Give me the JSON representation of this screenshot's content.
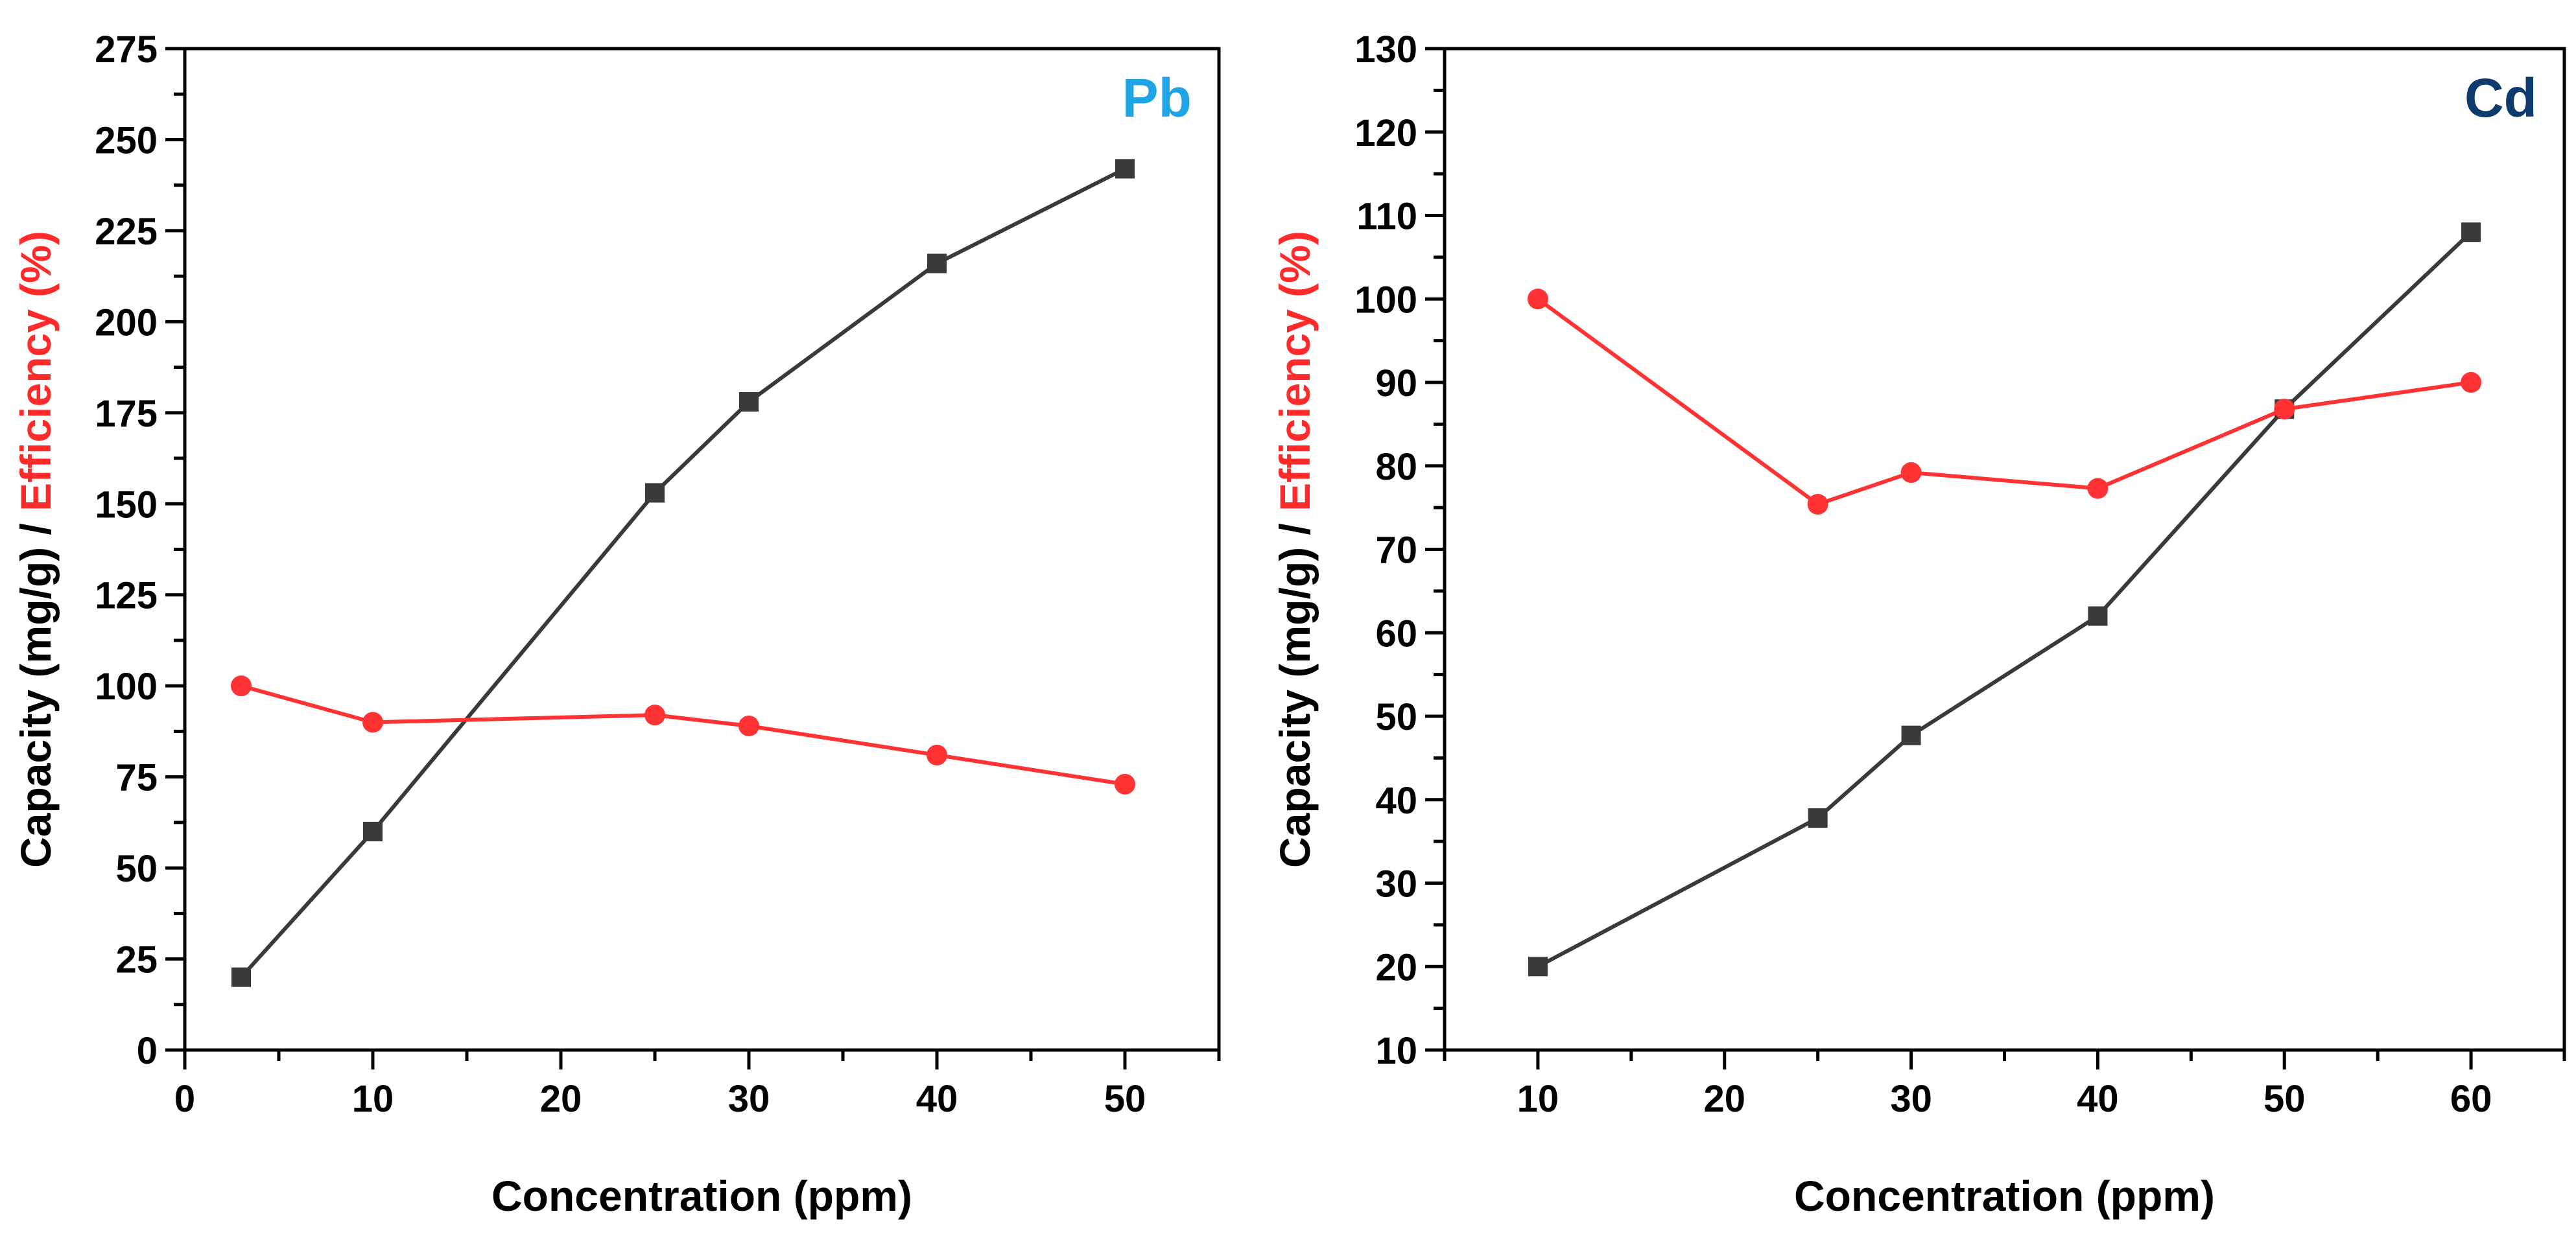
{
  "chart_data": [
    {
      "type": "line",
      "annotation": "Pb",
      "annotation_color": "#1fa5e6",
      "xlabel": "Concentration (ppm)",
      "ylabel_parts": [
        {
          "text": "Capacity (mg/g) / ",
          "color": "#000000"
        },
        {
          "text": "Efficiency (%)",
          "color": "#ff2a2a"
        }
      ],
      "xlim": [
        0,
        55
      ],
      "ylim": [
        0,
        275
      ],
      "x_ticks": [
        0,
        10,
        20,
        30,
        40,
        50
      ],
      "y_ticks": [
        0,
        25,
        50,
        75,
        100,
        125,
        150,
        175,
        200,
        225,
        250,
        275
      ],
      "legend": "none",
      "grid": false,
      "series": [
        {
          "color": "#3a3a3a",
          "marker": "square",
          "x": [
            3,
            10,
            25,
            30,
            40,
            50
          ],
          "y": [
            20,
            60,
            153,
            178,
            216,
            242
          ]
        },
        {
          "color": "#ff3333",
          "marker": "circle",
          "x": [
            3,
            10,
            25,
            30,
            40,
            50
          ],
          "y": [
            100,
            90,
            92,
            89,
            81,
            73
          ]
        }
      ]
    },
    {
      "type": "line",
      "annotation": "Cd",
      "annotation_color": "#0d3b6e",
      "xlabel": "Concentration (ppm)",
      "ylabel_parts": [
        {
          "text": "Capacity (mg/g) / ",
          "color": "#000000"
        },
        {
          "text": "Efficiency (%)",
          "color": "#ff2a2a"
        }
      ],
      "xlim": [
        5,
        65
      ],
      "ylim": [
        10,
        130
      ],
      "x_ticks": [
        10,
        20,
        30,
        40,
        50,
        60
      ],
      "y_ticks": [
        10,
        20,
        30,
        40,
        50,
        60,
        70,
        80,
        90,
        100,
        110,
        120,
        130
      ],
      "legend": "none",
      "grid": false,
      "series": [
        {
          "color": "#3a3a3a",
          "marker": "square",
          "x": [
            10,
            25,
            30,
            40,
            50,
            60
          ],
          "y": [
            20,
            37.8,
            47.7,
            62,
            86.8,
            108
          ]
        },
        {
          "color": "#ff3333",
          "marker": "circle",
          "x": [
            10,
            25,
            30,
            40,
            50,
            60
          ],
          "y": [
            100,
            75.4,
            79.2,
            77.3,
            86.8,
            90
          ]
        }
      ]
    }
  ]
}
